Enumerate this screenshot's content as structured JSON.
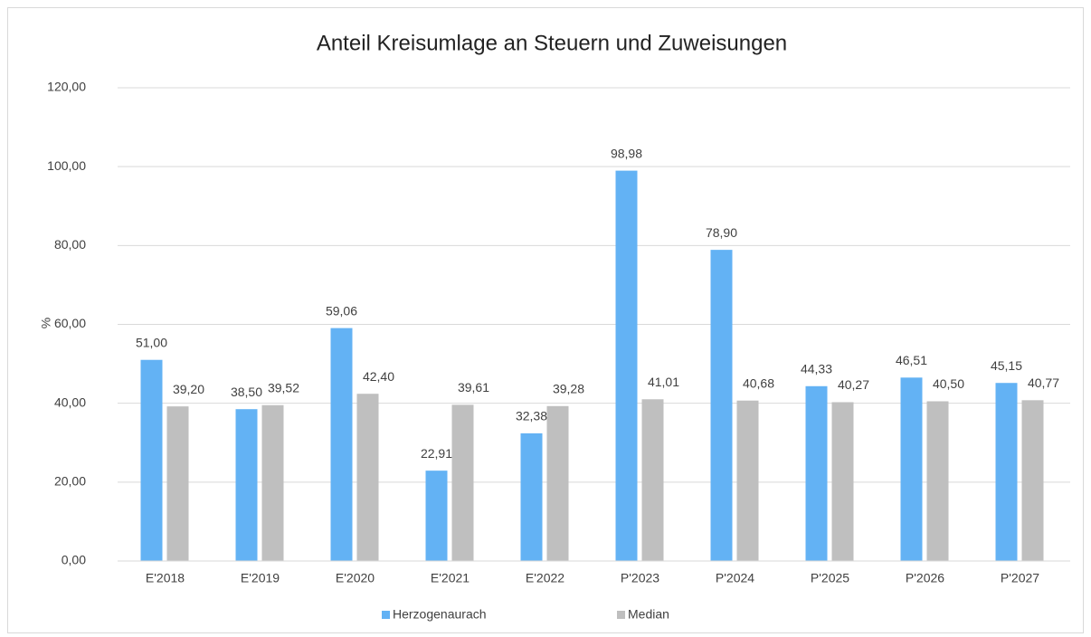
{
  "chart_data": {
    "type": "bar",
    "title": "Anteil Kreisumlage an Steuern und Zuweisungen",
    "y_label": "%",
    "categories": [
      "E'2018",
      "E'2019",
      "E'2020",
      "E'2021",
      "E'2022",
      "P'2023",
      "P'2024",
      "P'2025",
      "P'2026",
      "P'2027"
    ],
    "series": [
      {
        "name": "Herzogenaurach",
        "color": "#63b2f4",
        "values": [
          51.0,
          38.5,
          59.06,
          22.91,
          32.38,
          98.98,
          78.9,
          44.33,
          46.51,
          45.15
        ],
        "value_labels": [
          "51,00",
          "38,50",
          "59,06",
          "22,91",
          "32,38",
          "98,98",
          "78,90",
          "44,33",
          "46,51",
          "45,15"
        ]
      },
      {
        "name": "Median",
        "color": "#bfbfbf",
        "values": [
          39.2,
          39.52,
          42.4,
          39.61,
          39.28,
          41.01,
          40.68,
          40.27,
          40.5,
          40.77
        ],
        "value_labels": [
          "39,20",
          "39,52",
          "42,40",
          "39,61",
          "39,28",
          "41,01",
          "40,68",
          "40,27",
          "40,50",
          "40,77"
        ]
      }
    ],
    "ylim": [
      0,
      120
    ],
    "yticks": [
      {
        "value": 0,
        "label": "0,00"
      },
      {
        "value": 20,
        "label": "20,00"
      },
      {
        "value": 40,
        "label": "40,00"
      },
      {
        "value": 60,
        "label": "60,00"
      },
      {
        "value": 80,
        "label": "80,00"
      },
      {
        "value": 100,
        "label": "100,00"
      },
      {
        "value": 120,
        "label": "120,00"
      }
    ],
    "grid": true,
    "legend": "bottom"
  }
}
